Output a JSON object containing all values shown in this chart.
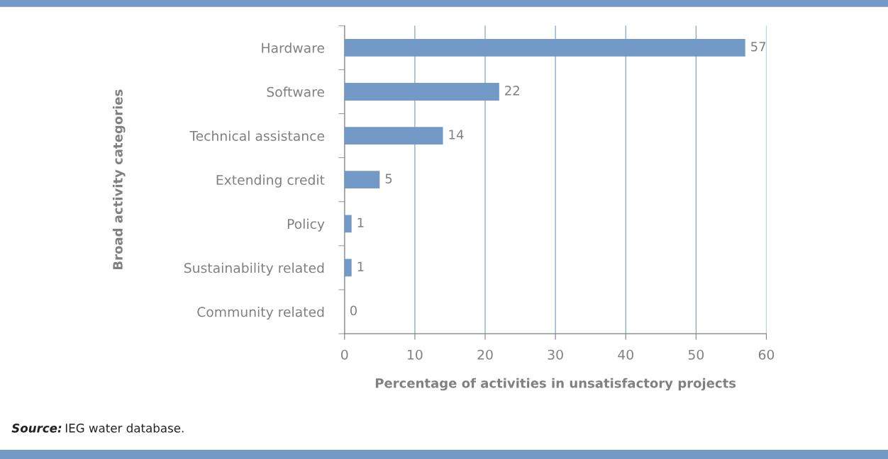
{
  "chart_data": {
    "type": "bar",
    "orientation": "horizontal",
    "categories": [
      "Hardware",
      "Software",
      "Technical assistance",
      "Extending credit",
      "Policy",
      "Sustainability related",
      "Community related"
    ],
    "values": [
      57,
      22,
      14,
      5,
      1,
      1,
      0
    ],
    "color": "#7399c6",
    "xlim": [
      0,
      60
    ],
    "xticks": [
      0,
      10,
      20,
      30,
      40,
      50,
      60
    ],
    "xlabel": "Percentage of activities in unsatisfactory projects",
    "ylabel": "Broad activity categories",
    "grid": "x",
    "data_labels": true,
    "annotations": [
      "Source: IEG water database."
    ]
  }
}
